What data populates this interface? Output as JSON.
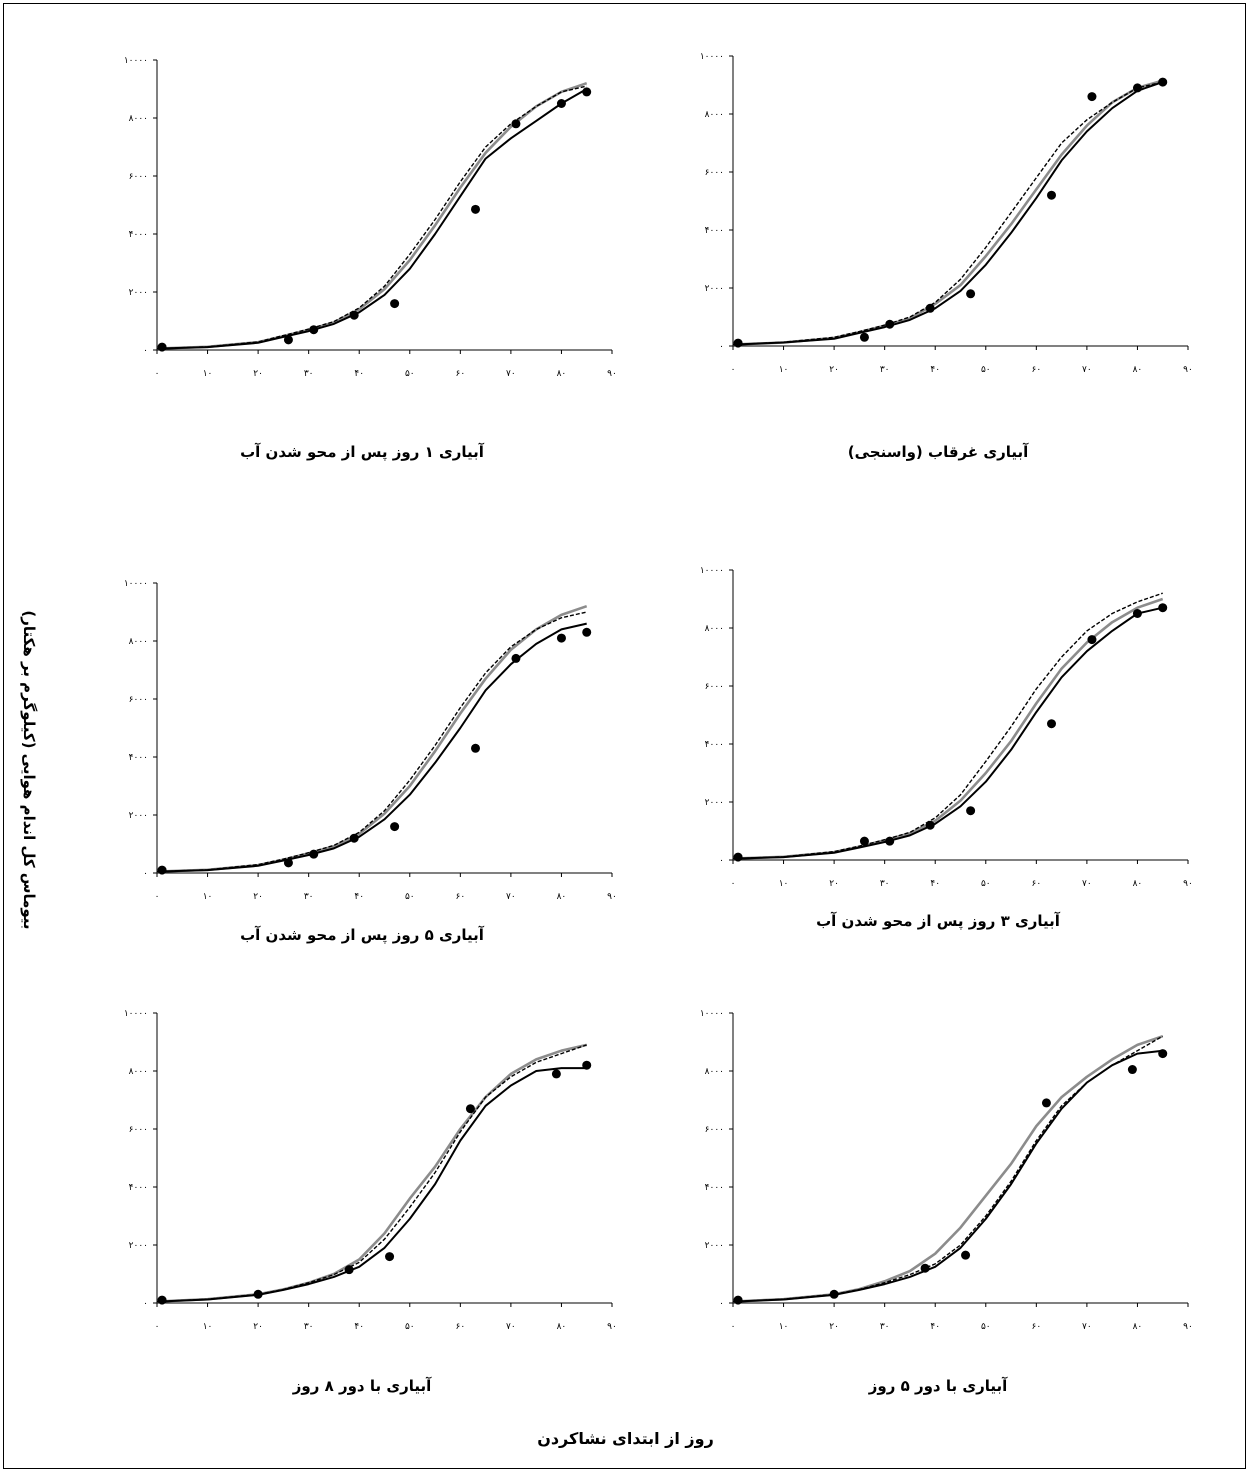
{
  "figure": {
    "ylabel": "بیوماس کل اندام هوایی (کیلوگرم بر هکتار)",
    "xlabel": "روز از ابتدای نشاکردن"
  },
  "chart_data": [
    {
      "type": "line",
      "title": "آبیاری ۱ روز پس از محو شدن آب",
      "xticks": [
        "۰",
        "۱۰",
        "۲۰",
        "۳۰",
        "۴۰",
        "۵۰",
        "۶۰",
        "۷۰",
        "۸۰",
        "۹۰"
      ],
      "yticks": [
        "۰",
        "۲۰۰۰",
        "۴۰۰۰",
        "۶۰۰۰",
        "۸۰۰۰",
        "۱۰۰۰۰"
      ],
      "xlim": [
        0,
        90
      ],
      "ylim": [
        0,
        10000
      ],
      "series": [
        {
          "style": "solid-black",
          "x": [
            0,
            10,
            20,
            25,
            30,
            35,
            40,
            45,
            50,
            55,
            60,
            65,
            70,
            75,
            80,
            85
          ],
          "y": [
            50,
            100,
            250,
            450,
            650,
            900,
            1300,
            1900,
            2800,
            4000,
            5300,
            6600,
            7300,
            7900,
            8500,
            9000
          ]
        },
        {
          "style": "solid-gray",
          "x": [
            0,
            10,
            20,
            25,
            30,
            35,
            40,
            45,
            50,
            55,
            60,
            65,
            70,
            75,
            80,
            85
          ],
          "y": [
            50,
            110,
            270,
            480,
            700,
            950,
            1400,
            2100,
            3100,
            4300,
            5600,
            6800,
            7700,
            8400,
            8900,
            9200
          ]
        },
        {
          "style": "dashed-black",
          "x": [
            0,
            10,
            20,
            25,
            30,
            35,
            40,
            45,
            50,
            55,
            60,
            65,
            70,
            75,
            80,
            85
          ],
          "y": [
            50,
            110,
            280,
            500,
            720,
            980,
            1450,
            2200,
            3300,
            4500,
            5800,
            7000,
            7800,
            8400,
            8900,
            9100
          ]
        },
        {
          "style": "observed",
          "x": [
            1,
            26,
            31,
            39,
            47,
            63,
            71,
            80,
            85
          ],
          "y": [
            100,
            350,
            700,
            1200,
            1600,
            4850,
            7800,
            8500,
            8900
          ]
        }
      ]
    },
    {
      "type": "line",
      "title": "آبیاری غرقاب (واسنجی)",
      "xticks": [
        "۰",
        "۱۰",
        "۲۰",
        "۳۰",
        "۴۰",
        "۵۰",
        "۶۰",
        "۷۰",
        "۸۰",
        "۹۰"
      ],
      "yticks": [
        "۰",
        "۲۰۰۰",
        "۴۰۰۰",
        "۶۰۰۰",
        "۸۰۰۰",
        "۱۰۰۰۰"
      ],
      "xlim": [
        0,
        90
      ],
      "ylim": [
        0,
        10000
      ],
      "series": [
        {
          "style": "solid-black",
          "x": [
            0,
            10,
            20,
            25,
            30,
            35,
            40,
            45,
            50,
            55,
            60,
            65,
            70,
            75,
            80,
            85
          ],
          "y": [
            50,
            120,
            250,
            450,
            650,
            900,
            1300,
            1900,
            2800,
            3900,
            5100,
            6400,
            7400,
            8200,
            8800,
            9100
          ]
        },
        {
          "style": "solid-gray",
          "x": [
            0,
            10,
            20,
            25,
            30,
            35,
            40,
            45,
            50,
            55,
            60,
            65,
            70,
            75,
            80,
            85
          ],
          "y": [
            50,
            120,
            280,
            480,
            700,
            950,
            1450,
            2100,
            3100,
            4200,
            5400,
            6600,
            7600,
            8400,
            8900,
            9150
          ]
        },
        {
          "style": "dashed-black",
          "x": [
            0,
            10,
            20,
            25,
            30,
            35,
            40,
            45,
            50,
            55,
            60,
            65,
            70,
            75,
            80,
            85
          ],
          "y": [
            50,
            130,
            300,
            500,
            720,
            1000,
            1500,
            2300,
            3400,
            4600,
            5800,
            7000,
            7800,
            8400,
            8900,
            9100
          ]
        },
        {
          "style": "observed",
          "x": [
            1,
            26,
            31,
            39,
            47,
            63,
            71,
            80,
            85
          ],
          "y": [
            100,
            300,
            750,
            1300,
            1800,
            5200,
            8600,
            8900,
            9100
          ]
        }
      ]
    },
    {
      "type": "line",
      "title": "آبیاری ۵ روز پس از محو شدن آب",
      "xticks": [
        "۰",
        "۱۰",
        "۲۰",
        "۳۰",
        "۴۰",
        "۵۰",
        "۶۰",
        "۷۰",
        "۸۰",
        "۹۰"
      ],
      "yticks": [
        "۰",
        "۲۰۰۰",
        "۴۰۰۰",
        "۶۰۰۰",
        "۸۰۰۰",
        "۱۰۰۰۰"
      ],
      "xlim": [
        0,
        90
      ],
      "ylim": [
        0,
        10000
      ],
      "series": [
        {
          "style": "solid-black",
          "x": [
            0,
            10,
            20,
            25,
            30,
            35,
            40,
            45,
            50,
            55,
            60,
            65,
            70,
            75,
            80,
            85
          ],
          "y": [
            50,
            100,
            250,
            430,
            620,
            850,
            1250,
            1850,
            2700,
            3800,
            5000,
            6300,
            7200,
            7900,
            8400,
            8600
          ]
        },
        {
          "style": "solid-gray",
          "x": [
            0,
            10,
            20,
            25,
            30,
            35,
            40,
            45,
            50,
            55,
            60,
            65,
            70,
            75,
            80,
            85
          ],
          "y": [
            50,
            110,
            270,
            460,
            680,
            920,
            1350,
            2050,
            3000,
            4200,
            5500,
            6700,
            7700,
            8400,
            8900,
            9200
          ]
        },
        {
          "style": "dashed-black",
          "x": [
            0,
            10,
            20,
            25,
            30,
            35,
            40,
            45,
            50,
            55,
            60,
            65,
            70,
            75,
            80,
            85
          ],
          "y": [
            50,
            110,
            290,
            480,
            700,
            950,
            1400,
            2150,
            3200,
            4400,
            5700,
            6900,
            7800,
            8400,
            8800,
            9000
          ]
        },
        {
          "style": "observed",
          "x": [
            1,
            26,
            31,
            39,
            47,
            63,
            71,
            80,
            85
          ],
          "y": [
            100,
            350,
            650,
            1200,
            1600,
            4300,
            7400,
            8100,
            8300
          ]
        }
      ]
    },
    {
      "type": "line",
      "title": "آبیاری ۳ روز پس از محو شدن آب",
      "xticks": [
        "۰",
        "۱۰",
        "۲۰",
        "۳۰",
        "۴۰",
        "۵۰",
        "۶۰",
        "۷۰",
        "۸۰",
        "۹۰"
      ],
      "yticks": [
        "۰",
        "۲۰۰۰",
        "۴۰۰۰",
        "۶۰۰۰",
        "۸۰۰۰",
        "۱۰۰۰۰"
      ],
      "xlim": [
        0,
        90
      ],
      "ylim": [
        0,
        10000
      ],
      "series": [
        {
          "style": "solid-black",
          "x": [
            0,
            10,
            20,
            25,
            30,
            35,
            40,
            45,
            50,
            55,
            60,
            65,
            70,
            75,
            80,
            85
          ],
          "y": [
            50,
            100,
            250,
            430,
            620,
            850,
            1250,
            1850,
            2700,
            3800,
            5100,
            6300,
            7200,
            7900,
            8500,
            8700
          ]
        },
        {
          "style": "solid-gray",
          "x": [
            0,
            10,
            20,
            25,
            30,
            35,
            40,
            45,
            50,
            55,
            60,
            65,
            70,
            75,
            80,
            85
          ],
          "y": [
            50,
            110,
            270,
            460,
            680,
            920,
            1350,
            2050,
            3000,
            4100,
            5400,
            6600,
            7500,
            8200,
            8700,
            9000
          ]
        },
        {
          "style": "dashed-black",
          "x": [
            0,
            10,
            20,
            25,
            30,
            35,
            40,
            45,
            50,
            55,
            60,
            65,
            70,
            75,
            80,
            85
          ],
          "y": [
            50,
            110,
            290,
            480,
            700,
            950,
            1450,
            2250,
            3400,
            4600,
            5900,
            7000,
            7900,
            8500,
            8900,
            9200
          ]
        },
        {
          "style": "observed",
          "x": [
            1,
            26,
            31,
            39,
            47,
            63,
            71,
            80,
            85
          ],
          "y": [
            100,
            650,
            650,
            1200,
            1700,
            4700,
            7600,
            8500,
            8700
          ]
        }
      ]
    },
    {
      "type": "line",
      "title": "آبیاری با دور ۸ روز",
      "xticks": [
        "۰",
        "۱۰",
        "۲۰",
        "۳۰",
        "۴۰",
        "۵۰",
        "۶۰",
        "۷۰",
        "۸۰",
        "۹۰"
      ],
      "yticks": [
        "۰",
        "۲۰۰۰",
        "۴۰۰۰",
        "۶۰۰۰",
        "۸۰۰۰",
        "۱۰۰۰۰"
      ],
      "xlim": [
        0,
        90
      ],
      "ylim": [
        0,
        10000
      ],
      "series": [
        {
          "style": "solid-black",
          "x": [
            0,
            10,
            20,
            25,
            30,
            35,
            40,
            45,
            50,
            55,
            60,
            65,
            70,
            75,
            80,
            85
          ],
          "y": [
            50,
            120,
            280,
            450,
            650,
            900,
            1250,
            1900,
            2900,
            4100,
            5600,
            6800,
            7500,
            8000,
            8100,
            8100
          ]
        },
        {
          "style": "solid-gray",
          "x": [
            0,
            10,
            20,
            25,
            30,
            35,
            40,
            45,
            50,
            55,
            60,
            65,
            70,
            75,
            80,
            85
          ],
          "y": [
            50,
            130,
            300,
            470,
            700,
            1000,
            1500,
            2400,
            3600,
            4700,
            6000,
            7100,
            7900,
            8400,
            8700,
            8900
          ]
        },
        {
          "style": "dashed-black",
          "x": [
            0,
            10,
            20,
            25,
            30,
            35,
            40,
            45,
            50,
            55,
            60,
            65,
            70,
            75,
            80,
            85
          ],
          "y": [
            50,
            130,
            300,
            470,
            700,
            980,
            1400,
            2200,
            3300,
            4500,
            5900,
            7100,
            7800,
            8300,
            8600,
            8900
          ]
        },
        {
          "style": "observed",
          "x": [
            1,
            20,
            38,
            46,
            62,
            79,
            85
          ],
          "y": [
            100,
            300,
            1150,
            1600,
            6700,
            7900,
            8200
          ]
        }
      ]
    },
    {
      "type": "line",
      "title": "آبیاری با دور ۵ روز",
      "xticks": [
        "۰",
        "۱۰",
        "۲۰",
        "۳۰",
        "۴۰",
        "۵۰",
        "۶۰",
        "۷۰",
        "۸۰",
        "۹۰"
      ],
      "yticks": [
        "۰",
        "۲۰۰۰",
        "۴۰۰۰",
        "۶۰۰۰",
        "۸۰۰۰",
        "۱۰۰۰۰"
      ],
      "xlim": [
        0,
        90
      ],
      "ylim": [
        0,
        10000
      ],
      "series": [
        {
          "style": "solid-black",
          "x": [
            0,
            10,
            20,
            25,
            30,
            35,
            40,
            45,
            50,
            55,
            60,
            65,
            70,
            75,
            80,
            85
          ],
          "y": [
            50,
            120,
            280,
            450,
            650,
            900,
            1250,
            1900,
            2900,
            4100,
            5500,
            6700,
            7600,
            8200,
            8600,
            8700
          ]
        },
        {
          "style": "solid-gray",
          "x": [
            0,
            10,
            20,
            25,
            30,
            35,
            40,
            45,
            50,
            55,
            60,
            65,
            70,
            75,
            80,
            85
          ],
          "y": [
            50,
            130,
            300,
            480,
            750,
            1100,
            1700,
            2600,
            3700,
            4800,
            6100,
            7100,
            7800,
            8400,
            8900,
            9200
          ]
        },
        {
          "style": "dashed-black",
          "x": [
            0,
            10,
            20,
            25,
            30,
            35,
            40,
            45,
            50,
            55,
            60,
            65,
            70,
            75,
            80,
            85
          ],
          "y": [
            50,
            130,
            300,
            470,
            700,
            980,
            1350,
            2000,
            3000,
            4200,
            5600,
            6800,
            7600,
            8200,
            8700,
            9200
          ]
        },
        {
          "style": "observed",
          "x": [
            1,
            20,
            38,
            46,
            62,
            79,
            85
          ],
          "y": [
            100,
            300,
            1200,
            1650,
            6900,
            8050,
            8600
          ]
        }
      ]
    }
  ]
}
